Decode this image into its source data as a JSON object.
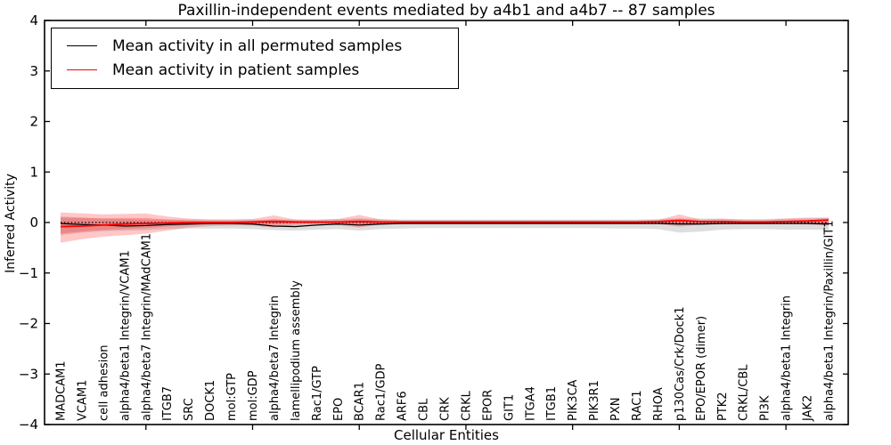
{
  "figure": {
    "title": "Paxillin-independent events mediated by a4b1 and a4b7 -- 87 samples",
    "xlabel": "Cellular Entities",
    "ylabel": "Inferred Activity"
  },
  "legend": {
    "items": [
      {
        "label": "Mean activity in all permuted samples",
        "color": "#000000"
      },
      {
        "label": "Mean activity in patient samples",
        "color": "#ff0000"
      }
    ]
  },
  "chart_data": {
    "type": "line",
    "title": "Paxillin-independent events mediated by a4b1 and a4b7 -- 87 samples",
    "xlabel": "Cellular Entities",
    "ylabel": "Inferred Activity",
    "ylim": [
      -4,
      4
    ],
    "ytick_values": [
      4,
      3,
      2,
      1,
      0,
      -1,
      -2,
      -3,
      -4
    ],
    "ytick_labels": [
      "4",
      "3",
      "2",
      "1",
      "0",
      "−1",
      "−2",
      "−3",
      "−4"
    ],
    "x_major_tick_indices": [
      4,
      9,
      14,
      19,
      24,
      29,
      34
    ],
    "grid": false,
    "legend_position": "upper left",
    "categories": [
      "MADCAM1",
      "VCAM1",
      "cell adhesion",
      "alpha4/beta1 Integrin/VCAM1",
      "alpha4/beta7 Integrin/MAdCAM1",
      "ITGB7",
      "SRC",
      "DOCK1",
      "mol:GTP",
      "mol:GDP",
      "alpha4/beta7 Integrin",
      "lamellipodium assembly",
      "Rac1/GTP",
      "EPO",
      "BCAR1",
      "Rac1/GDP",
      "ARF6",
      "CBL",
      "CRK",
      "CRKL",
      "EPOR",
      "GIT1",
      "ITGA4",
      "ITGB1",
      "PIK3CA",
      "PIK3R1",
      "PXN",
      "RAC1",
      "RHOA",
      "p130Cas/Crk/Dock1",
      "EPO/EPOR (dimer)",
      "PTK2",
      "CRKL/CBL",
      "PI3K",
      "alpha4/beta1 Integrin",
      "JAK2",
      "alpha4/beta1 Integrin/Paxillin/GIT1"
    ],
    "series": [
      {
        "name": "Mean activity in all permuted samples",
        "color": "#000000",
        "style": "solid",
        "width": 1.3,
        "values": [
          -0.02,
          -0.04,
          -0.05,
          -0.07,
          -0.06,
          -0.04,
          -0.03,
          -0.02,
          -0.02,
          -0.03,
          -0.07,
          -0.08,
          -0.05,
          -0.03,
          -0.05,
          -0.03,
          -0.02,
          -0.02,
          -0.02,
          -0.02,
          -0.02,
          -0.02,
          -0.02,
          -0.02,
          -0.02,
          -0.02,
          -0.02,
          -0.02,
          -0.02,
          -0.03,
          -0.03,
          -0.02,
          -0.02,
          -0.02,
          -0.02,
          -0.02,
          -0.03
        ]
      },
      {
        "name": "Mean activity in patient samples",
        "color": "#ff0000",
        "style": "solid",
        "width": 1.8,
        "values": [
          -0.08,
          -0.07,
          -0.05,
          -0.03,
          -0.02,
          -0.01,
          0.0,
          0.0,
          0.0,
          0.01,
          0.02,
          0.01,
          0.01,
          0.01,
          0.02,
          0.01,
          0.01,
          0.01,
          0.01,
          0.01,
          0.01,
          0.01,
          0.01,
          0.01,
          0.01,
          0.01,
          0.01,
          0.01,
          0.02,
          0.04,
          0.02,
          0.02,
          0.01,
          0.01,
          0.02,
          0.03,
          0.05
        ]
      }
    ],
    "bands": [
      {
        "name": "permuted-samples-range",
        "color": "rgba(0,0,0,0.13)",
        "upper": [
          0.12,
          0.1,
          0.08,
          0.07,
          0.06,
          0.06,
          0.06,
          0.06,
          0.06,
          0.06,
          0.06,
          0.06,
          0.06,
          0.07,
          0.08,
          0.07,
          0.06,
          0.06,
          0.06,
          0.06,
          0.06,
          0.06,
          0.06,
          0.06,
          0.06,
          0.06,
          0.06,
          0.06,
          0.07,
          0.08,
          0.08,
          0.07,
          0.07,
          0.07,
          0.08,
          0.08,
          0.09
        ],
        "lower": [
          -0.25,
          -0.2,
          -0.17,
          -0.16,
          -0.15,
          -0.13,
          -0.12,
          -0.12,
          -0.12,
          -0.13,
          -0.15,
          -0.16,
          -0.14,
          -0.13,
          -0.16,
          -0.13,
          -0.12,
          -0.11,
          -0.11,
          -0.11,
          -0.11,
          -0.11,
          -0.11,
          -0.11,
          -0.11,
          -0.11,
          -0.12,
          -0.12,
          -0.13,
          -0.2,
          -0.18,
          -0.14,
          -0.13,
          -0.13,
          -0.14,
          -0.14,
          -0.15
        ]
      },
      {
        "name": "patient-samples-range-outer",
        "color": "rgba(255,0,0,0.22)",
        "upper": [
          0.2,
          0.18,
          0.16,
          0.17,
          0.18,
          0.12,
          0.08,
          0.06,
          0.06,
          0.07,
          0.14,
          0.06,
          0.05,
          0.07,
          0.15,
          0.06,
          0.04,
          0.04,
          0.04,
          0.04,
          0.04,
          0.04,
          0.04,
          0.04,
          0.04,
          0.04,
          0.04,
          0.04,
          0.05,
          0.16,
          0.06,
          0.08,
          0.05,
          0.05,
          0.08,
          0.1,
          0.1
        ],
        "lower": [
          -0.4,
          -0.33,
          -0.28,
          -0.25,
          -0.22,
          -0.16,
          -0.1,
          -0.07,
          -0.06,
          -0.06,
          -0.1,
          -0.05,
          -0.04,
          -0.05,
          -0.1,
          -0.04,
          -0.03,
          -0.02,
          -0.02,
          -0.02,
          -0.02,
          -0.02,
          -0.02,
          -0.02,
          -0.02,
          -0.02,
          -0.02,
          -0.02,
          -0.03,
          -0.08,
          -0.04,
          -0.04,
          -0.03,
          -0.03,
          -0.03,
          -0.04,
          -0.06
        ]
      },
      {
        "name": "patient-samples-range-inner",
        "color": "rgba(255,0,0,0.22)",
        "upper": [
          0.1,
          0.09,
          0.08,
          0.09,
          0.09,
          0.06,
          0.04,
          0.03,
          0.03,
          0.03,
          0.07,
          0.03,
          0.02,
          0.03,
          0.07,
          0.03,
          0.02,
          0.02,
          0.02,
          0.02,
          0.02,
          0.02,
          0.02,
          0.02,
          0.02,
          0.02,
          0.02,
          0.02,
          0.03,
          0.08,
          0.03,
          0.04,
          0.02,
          0.02,
          0.04,
          0.05,
          0.05
        ],
        "lower": [
          -0.22,
          -0.18,
          -0.15,
          -0.13,
          -0.11,
          -0.08,
          -0.05,
          -0.03,
          -0.03,
          -0.03,
          -0.04,
          -0.02,
          -0.02,
          -0.02,
          -0.04,
          -0.02,
          -0.01,
          -0.01,
          -0.01,
          -0.01,
          -0.01,
          -0.01,
          -0.01,
          -0.01,
          -0.01,
          -0.01,
          -0.01,
          -0.01,
          -0.01,
          -0.03,
          -0.02,
          -0.02,
          -0.01,
          -0.01,
          -0.01,
          -0.02,
          -0.02
        ]
      }
    ],
    "zero_line": {
      "y": 0,
      "style": "dotted",
      "color": "#000000"
    }
  }
}
